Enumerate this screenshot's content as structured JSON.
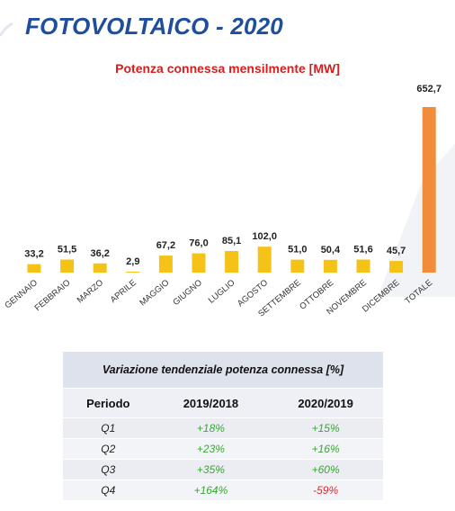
{
  "page": {
    "title": "FOTOVOLTAICO - 2020"
  },
  "colors": {
    "title_blue": "#1f4e9c",
    "chart_title_red": "#d41f1f",
    "bar_yellow": "#f5c318",
    "bar_total_orange": "#f08c3a",
    "positive_green": "#3aa635",
    "negative_red": "#e0282e"
  },
  "chart_data": {
    "type": "bar",
    "title": "Potenza connessa mensilmente [MW]",
    "xlabel": "",
    "ylabel": "",
    "categories": [
      "GENNAIO",
      "FEBBRAIO",
      "MARZO",
      "APRILE",
      "MAGGIO",
      "GIUGNO",
      "LUGLIO",
      "AGOSTO",
      "SETTEMBRE",
      "OTTOBRE",
      "NOVEMBRE",
      "DICEMBRE",
      "TOTALE"
    ],
    "values": [
      33.2,
      51.5,
      36.2,
      2.9,
      67.2,
      76.0,
      85.1,
      102.0,
      51.0,
      50.4,
      51.6,
      45.7,
      652.7
    ],
    "value_labels": [
      "33,2",
      "51,5",
      "36,2",
      "2,9",
      "67,2",
      "76,0",
      "85,1",
      "102,0",
      "51,0",
      "50,4",
      "51,6",
      "45,7",
      "652,7"
    ],
    "ylim": [
      0,
      652.7
    ],
    "grid": false,
    "legend": "none"
  },
  "table": {
    "caption": "Variazione tendenziale potenza connessa [%]",
    "headers": [
      "Periodo",
      "2019/2018",
      "2020/2019"
    ],
    "rows": [
      {
        "period": "Q1",
        "v2019": "+18%",
        "v2020": "+15%"
      },
      {
        "period": "Q2",
        "v2019": "+23%",
        "v2020": "+16%"
      },
      {
        "period": "Q3",
        "v2019": "+35%",
        "v2020": "+60%"
      },
      {
        "period": "Q4",
        "v2019": "+164%",
        "v2020": "-59%"
      }
    ]
  }
}
